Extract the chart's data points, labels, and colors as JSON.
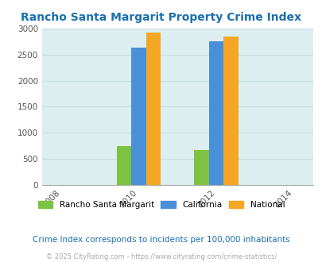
{
  "title": "Rancho Santa Margarit Property Crime Index",
  "title_color": "#1a6faf",
  "years": [
    2008,
    2010,
    2012,
    2014
  ],
  "data_years": [
    2010,
    2012
  ],
  "rancho": [
    750,
    670
  ],
  "california": [
    2640,
    2760
  ],
  "national": [
    2930,
    2850
  ],
  "bar_colors": {
    "rancho": "#7dc242",
    "california": "#4a90d9",
    "national": "#f5a623"
  },
  "ylim": [
    0,
    3000
  ],
  "yticks": [
    0,
    500,
    1000,
    1500,
    2000,
    2500,
    3000
  ],
  "bg_color": "#dceef0",
  "fig_bg": "#ffffff",
  "legend_labels": [
    "Rancho Santa Margarit",
    "California",
    "National"
  ],
  "footnote1": "Crime Index corresponds to incidents per 100,000 inhabitants",
  "footnote2": "© 2025 CityRating.com - https://www.cityrating.com/crime-statistics/",
  "footnote1_color": "#1a6faf",
  "footnote2_color": "#aaaaaa",
  "bar_width": 0.38,
  "axis_tick_color": "#555555",
  "grid_color": "#c8dde0"
}
